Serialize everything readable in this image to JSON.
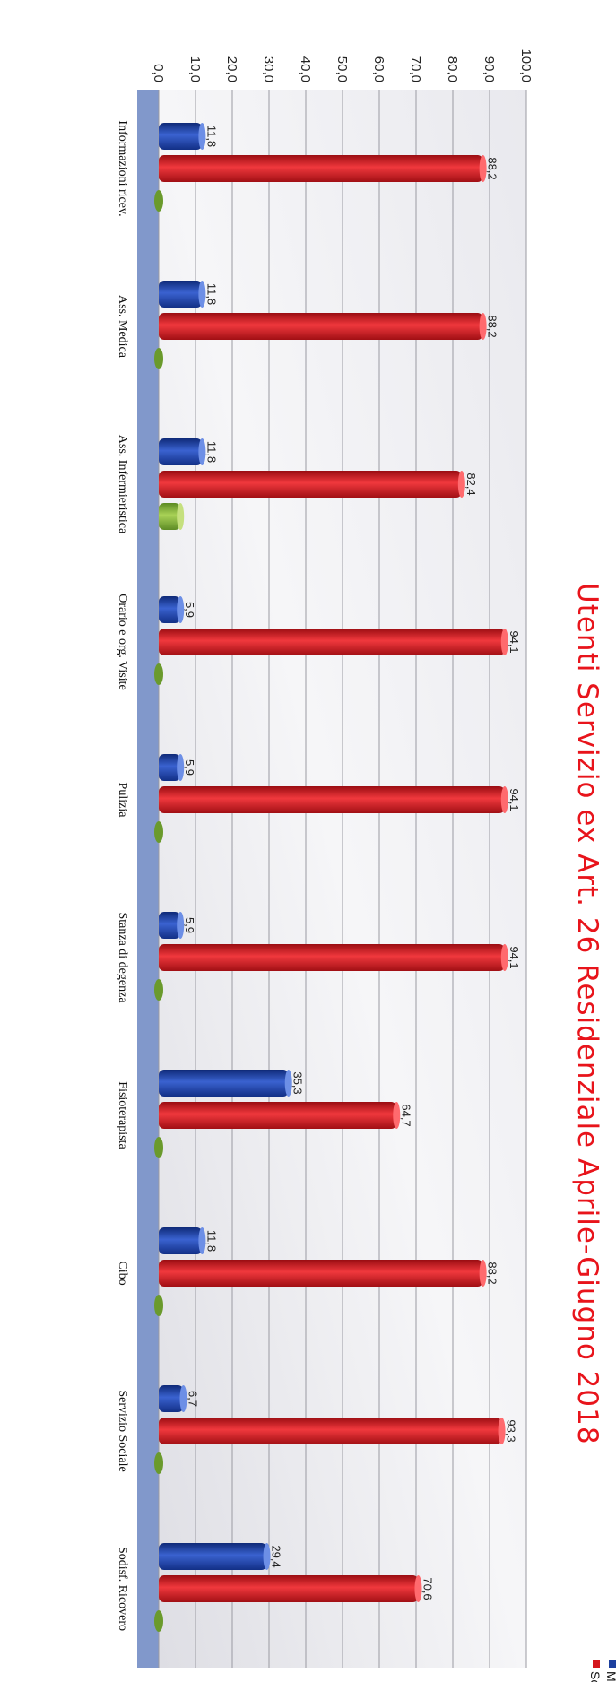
{
  "chart_data": {
    "type": "bar",
    "orientation": "vertical-bars, page rotated 90° clockwise",
    "title": "Utenti Servizio ex Art. 26 Residenziale Aprile-Giugno 2018",
    "xlabel": "",
    "ylabel": "",
    "ylim": [
      0,
      100
    ],
    "yticks": [
      "0,0",
      "10,0",
      "20,0",
      "30,0",
      "40,0",
      "50,0",
      "60,0",
      "70,0",
      "80,0",
      "90,0",
      "100,0"
    ],
    "grid": true,
    "legend_position": "right edge (rotated)",
    "categories": [
      "Informazioni ricev.",
      "Ass. Medica",
      "Ass. Infermieristica",
      "Orario e org. Visite",
      "Pulizia",
      "Stanza di degenza",
      "Fisioterapista",
      "Cibo",
      "Servizio Sociale",
      "Sodisf. Ricovero"
    ],
    "series": [
      {
        "name": "Molto S.",
        "color": "#1c3f9e",
        "values": [
          11.8,
          11.8,
          11.8,
          5.9,
          5.9,
          5.9,
          35.3,
          11.8,
          6.7,
          29.4
        ],
        "labels": [
          "11,8",
          "11,8",
          "11,8",
          "5,9",
          "5,9",
          "5,9",
          "35,3",
          "11,8",
          "6,7",
          "29,4"
        ]
      },
      {
        "name": "Sodd.",
        "color": "#d4161c",
        "values": [
          88.2,
          88.2,
          82.4,
          94.1,
          94.1,
          94.1,
          64.7,
          88.2,
          93.3,
          70.6
        ],
        "labels": [
          "88,2",
          "88,2",
          "82,4",
          "94,1",
          "94,1",
          "94,1",
          "64,7",
          "88,2",
          "93,3",
          "70,6"
        ]
      },
      {
        "color": "#7fb03a",
        "values": [
          0,
          0,
          5.9,
          0,
          0,
          0,
          0,
          0,
          0,
          0
        ],
        "labels": [
          "",
          "",
          "",
          "",
          "",
          "",
          "",
          "",
          "",
          ""
        ]
      }
    ]
  }
}
